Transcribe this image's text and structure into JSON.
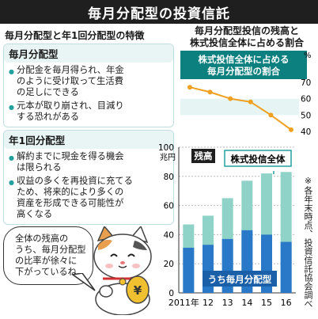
{
  "header": {
    "title": "毎月分配型の投資信託"
  },
  "left": {
    "title": "毎月分配型と年1回分配型の特徴",
    "monthly": {
      "title": "毎月分配型",
      "points": [
        [
          "分配金を毎月得られ、年金",
          "のように受け取って生活費",
          "の足しにできる"
        ],
        [
          "元本が取り崩され、目減り",
          "する恐れがある"
        ]
      ]
    },
    "annual": {
      "title": "年1回分配型",
      "points": [
        [
          "解約までに現金を得る機会",
          "は限られる"
        ],
        [
          "収益の多くを再投資に充てる",
          "ため、将来的により多くの",
          "資産を形成できる可能性が",
          "高くなる"
        ]
      ]
    }
  },
  "speech": [
    "全体の残高の",
    "うち、毎月分配型",
    "の比率が徐々に",
    "下がっているね"
  ],
  "right": {
    "title": [
      "毎月分配型投信の残高と",
      "株式投信全体に占める割合"
    ]
  },
  "chart_data": [
    {
      "type": "line",
      "title": [
        "株式投信全体に占める",
        "毎月分配型の割合"
      ],
      "unit": "%",
      "x": [
        "2011年",
        "12",
        "13",
        "14",
        "15",
        "16"
      ],
      "values": [
        67,
        64,
        60,
        58,
        50,
        41
      ],
      "ylim": [
        40,
        70
      ],
      "yticks": [
        40,
        50,
        60,
        70
      ],
      "color": "#f0a020"
    },
    {
      "type": "bar",
      "unit": "兆円",
      "categories": [
        "2011年",
        "12",
        "13",
        "14",
        "15",
        "16"
      ],
      "series": [
        {
          "name": "残高",
          "values": [
            47,
            53,
            65,
            77,
            82,
            83
          ],
          "color": "#8fd3c8"
        },
        {
          "name": "うち毎月分配型",
          "values": [
            31,
            33,
            37,
            43,
            40,
            35
          ],
          "color": "#2a78c8"
        }
      ],
      "labels": {
        "total": "残高",
        "stock_total": "株式投信全体",
        "monthly": "うち毎月分配型"
      },
      "ylim": [
        0,
        100
      ],
      "yticks": [
        0,
        20,
        40,
        60,
        80,
        100
      ],
      "note": "※各年末時点、投資信託協会調べ"
    }
  ]
}
